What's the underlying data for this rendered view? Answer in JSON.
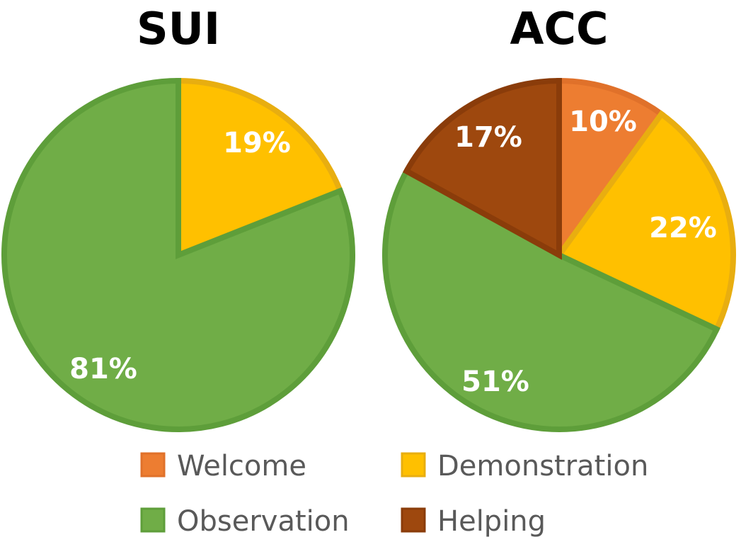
{
  "chart_data": [
    {
      "type": "pie",
      "title": "SUI",
      "slices": [
        {
          "category": "Welcome",
          "value": 0,
          "label": ""
        },
        {
          "category": "Demonstration",
          "value": 19,
          "label": "19%"
        },
        {
          "category": "Observation",
          "value": 81,
          "label": "81%"
        },
        {
          "category": "Helping",
          "value": 0,
          "label": ""
        }
      ]
    },
    {
      "type": "pie",
      "title": "ACC",
      "slices": [
        {
          "category": "Welcome",
          "value": 10,
          "label": "10%"
        },
        {
          "category": "Demonstration",
          "value": 22,
          "label": "22%"
        },
        {
          "category": "Observation",
          "value": 51,
          "label": "51%"
        },
        {
          "category": "Helping",
          "value": 17,
          "label": "17%"
        }
      ]
    }
  ],
  "legend": {
    "placement": "bottom",
    "items": [
      {
        "label": "Welcome",
        "color": "#ED7D31",
        "border": "#E0712A"
      },
      {
        "label": "Demonstration",
        "color": "#FFC000",
        "border": "#E8AE10"
      },
      {
        "label": "Observation",
        "color": "#70AD47",
        "border": "#5E9E3A"
      },
      {
        "label": "Helping",
        "color": "#9E480E",
        "border": "#8A3C0A"
      }
    ]
  }
}
